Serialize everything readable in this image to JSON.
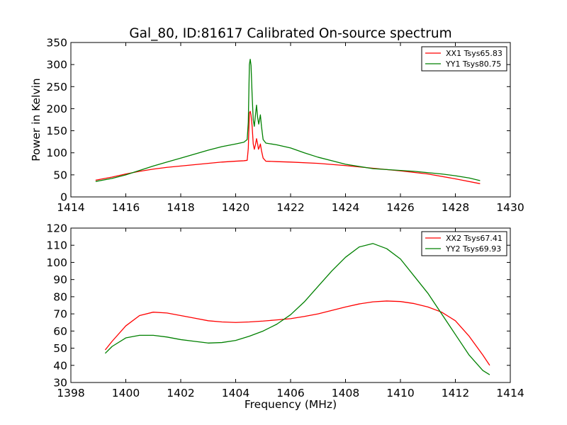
{
  "title": "Gal_80, ID:81617 Calibrated On-source spectrum",
  "chart_data": [
    {
      "type": "line",
      "title": "Gal_80, ID:81617 Calibrated On-source spectrum",
      "xlabel": "",
      "ylabel": "Power in Kelvin",
      "xlim": [
        1414,
        1430
      ],
      "ylim": [
        0,
        350
      ],
      "xticks": [
        1414,
        1416,
        1418,
        1420,
        1422,
        1424,
        1426,
        1428,
        1430
      ],
      "yticks": [
        0,
        50,
        100,
        150,
        200,
        250,
        300,
        350
      ],
      "grid": false,
      "legend": "top-right",
      "series": [
        {
          "name": "XX1 Tsys65.83",
          "color": "#ff0000",
          "points": [
            [
              1414.9,
              38
            ],
            [
              1415.5,
              45
            ],
            [
              1416,
              52
            ],
            [
              1416.5,
              58
            ],
            [
              1417,
              63
            ],
            [
              1417.5,
              67
            ],
            [
              1418,
              70
            ],
            [
              1418.5,
              73
            ],
            [
              1419,
              76
            ],
            [
              1419.5,
              79
            ],
            [
              1420,
              81
            ],
            [
              1420.3,
              82
            ],
            [
              1420.42,
              83
            ],
            [
              1420.46,
              110
            ],
            [
              1420.5,
              190
            ],
            [
              1420.53,
              194
            ],
            [
              1420.56,
              185
            ],
            [
              1420.6,
              160
            ],
            [
              1420.64,
              120
            ],
            [
              1420.68,
              108
            ],
            [
              1420.72,
              118
            ],
            [
              1420.76,
              132
            ],
            [
              1420.8,
              120
            ],
            [
              1420.83,
              108
            ],
            [
              1420.86,
              112
            ],
            [
              1420.9,
              120
            ],
            [
              1420.94,
              105
            ],
            [
              1421,
              88
            ],
            [
              1421.1,
              81
            ],
            [
              1421.5,
              80
            ],
            [
              1422,
              79
            ],
            [
              1423,
              76
            ],
            [
              1424,
              71
            ],
            [
              1425,
              65
            ],
            [
              1426,
              59
            ],
            [
              1427,
              52
            ],
            [
              1428,
              41
            ],
            [
              1428.9,
              30
            ]
          ]
        },
        {
          "name": "YY1 Tsys80.75",
          "color": "#008000",
          "points": [
            [
              1414.9,
              35
            ],
            [
              1415.5,
              42
            ],
            [
              1416,
              50
            ],
            [
              1416.5,
              60
            ],
            [
              1417,
              70
            ],
            [
              1417.5,
              79
            ],
            [
              1418,
              88
            ],
            [
              1418.5,
              97
            ],
            [
              1419,
              106
            ],
            [
              1419.5,
              114
            ],
            [
              1420,
              120
            ],
            [
              1420.3,
              124
            ],
            [
              1420.42,
              130
            ],
            [
              1420.46,
              170
            ],
            [
              1420.5,
              300
            ],
            [
              1420.53,
              312
            ],
            [
              1420.56,
              298
            ],
            [
              1420.6,
              230
            ],
            [
              1420.64,
              175
            ],
            [
              1420.68,
              160
            ],
            [
              1420.72,
              185
            ],
            [
              1420.76,
              208
            ],
            [
              1420.8,
              180
            ],
            [
              1420.84,
              165
            ],
            [
              1420.87,
              175
            ],
            [
              1420.9,
              186
            ],
            [
              1420.94,
              160
            ],
            [
              1421,
              130
            ],
            [
              1421.1,
              122
            ],
            [
              1421.5,
              118
            ],
            [
              1422,
              111
            ],
            [
              1422.5,
              100
            ],
            [
              1423,
              90
            ],
            [
              1423.5,
              82
            ],
            [
              1424,
              74
            ],
            [
              1424.5,
              69
            ],
            [
              1425,
              64
            ],
            [
              1425.5,
              62
            ],
            [
              1426,
              60
            ],
            [
              1426.5,
              58
            ],
            [
              1427,
              55
            ],
            [
              1427.5,
              52
            ],
            [
              1428,
              48
            ],
            [
              1428.5,
              43
            ],
            [
              1428.9,
              37
            ]
          ]
        }
      ]
    },
    {
      "type": "line",
      "title": "",
      "xlabel": "Frequency (MHz)",
      "ylabel": "",
      "xlim": [
        1398,
        1414
      ],
      "ylim": [
        30,
        120
      ],
      "xticks": [
        1398,
        1400,
        1402,
        1404,
        1406,
        1408,
        1410,
        1412,
        1414
      ],
      "yticks": [
        30,
        40,
        50,
        60,
        70,
        80,
        90,
        100,
        110,
        120
      ],
      "grid": false,
      "legend": "top-right",
      "series": [
        {
          "name": "XX2 Tsys67.41",
          "color": "#ff0000",
          "points": [
            [
              1399.25,
              49
            ],
            [
              1399.5,
              54
            ],
            [
              1400,
              63
            ],
            [
              1400.5,
              69
            ],
            [
              1401,
              71
            ],
            [
              1401.5,
              70.5
            ],
            [
              1402,
              69
            ],
            [
              1402.5,
              67.5
            ],
            [
              1403,
              66
            ],
            [
              1403.5,
              65.3
            ],
            [
              1404,
              65
            ],
            [
              1404.5,
              65.3
            ],
            [
              1405,
              65.8
            ],
            [
              1405.5,
              66.5
            ],
            [
              1406,
              67.2
            ],
            [
              1406.5,
              68.5
            ],
            [
              1407,
              70
            ],
            [
              1407.5,
              72
            ],
            [
              1408,
              74
            ],
            [
              1408.5,
              75.8
            ],
            [
              1409,
              77
            ],
            [
              1409.5,
              77.5
            ],
            [
              1410,
              77.2
            ],
            [
              1410.5,
              76
            ],
            [
              1411,
              74
            ],
            [
              1411.5,
              71
            ],
            [
              1412,
              66
            ],
            [
              1412.5,
              57
            ],
            [
              1413,
              46
            ],
            [
              1413.25,
              40
            ]
          ]
        },
        {
          "name": "YY2 Tsys69.93",
          "color": "#008000",
          "points": [
            [
              1399.25,
              47
            ],
            [
              1399.5,
              51
            ],
            [
              1400,
              56
            ],
            [
              1400.5,
              57.5
            ],
            [
              1401,
              57.5
            ],
            [
              1401.5,
              56.5
            ],
            [
              1402,
              55
            ],
            [
              1402.5,
              54
            ],
            [
              1403,
              53
            ],
            [
              1403.5,
              53.3
            ],
            [
              1404,
              54.5
            ],
            [
              1404.5,
              57
            ],
            [
              1405,
              60
            ],
            [
              1405.5,
              64
            ],
            [
              1406,
              69.5
            ],
            [
              1406.5,
              77
            ],
            [
              1407,
              86
            ],
            [
              1407.5,
              95
            ],
            [
              1408,
              103
            ],
            [
              1408.5,
              109
            ],
            [
              1409,
              111
            ],
            [
              1409.5,
              108
            ],
            [
              1410,
              102
            ],
            [
              1410.5,
              92
            ],
            [
              1411,
              82
            ],
            [
              1411.5,
              70
            ],
            [
              1412,
              58
            ],
            [
              1412.5,
              46
            ],
            [
              1413,
              37
            ],
            [
              1413.25,
              34.5
            ]
          ]
        }
      ]
    }
  ]
}
